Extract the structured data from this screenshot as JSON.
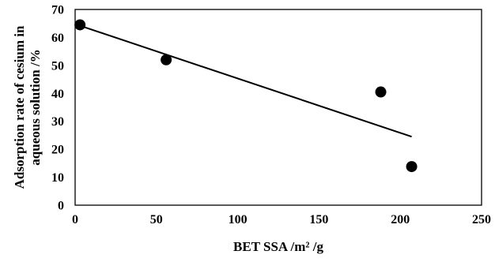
{
  "chart_data": {
    "type": "scatter",
    "xlabel": "BET SSA /m² /g",
    "ylabel_lines": [
      "Adsorption rate of cesium in",
      "aqueous solution /%"
    ],
    "xlim": [
      0,
      250
    ],
    "ylim": [
      0,
      70
    ],
    "x_ticks": [
      0,
      50,
      100,
      150,
      200,
      250
    ],
    "y_ticks": [
      0,
      10,
      20,
      30,
      40,
      50,
      60,
      70
    ],
    "grid": false,
    "series": [
      {
        "points": [
          {
            "x": 3,
            "y": 64.5
          },
          {
            "x": 56,
            "y": 52
          },
          {
            "x": 188,
            "y": 40.5
          },
          {
            "x": 207,
            "y": 13.8
          }
        ]
      }
    ],
    "trendline": {
      "type": "linear",
      "from": {
        "x": 3,
        "y": 64.2
      },
      "to": {
        "x": 207,
        "y": 24.5
      }
    },
    "colors": {
      "marker": "#000000",
      "line": "#000000",
      "axis": "#000000"
    }
  }
}
